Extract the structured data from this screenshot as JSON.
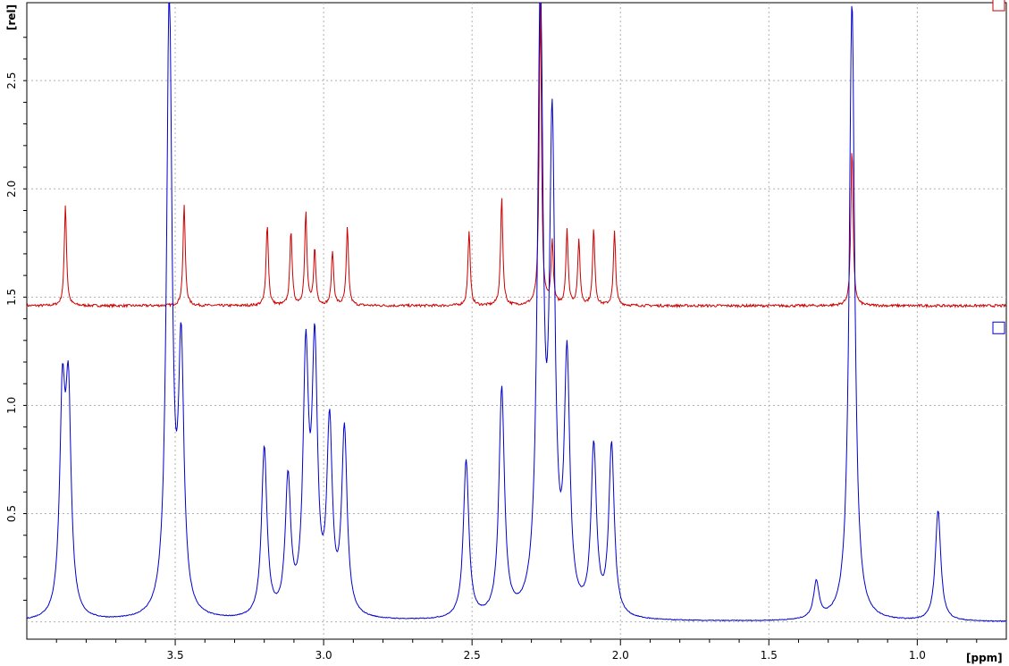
{
  "chart_data": {
    "type": "line",
    "xlabel": "[ppm]",
    "ylabel": "[rel]",
    "x_reversed": true,
    "xlim": [
      4.0,
      0.7
    ],
    "ylim": [
      -0.08,
      2.86
    ],
    "x_ticks": [
      3.5,
      3.0,
      2.5,
      2.0,
      1.5,
      1.0
    ],
    "x_tick_labels": [
      "3.5",
      "3.0",
      "2.5",
      "2.0",
      "1.5",
      "1.0"
    ],
    "y_ticks": [
      0.5,
      1.0,
      1.5,
      2.0,
      2.5
    ],
    "y_tick_labels": [
      "0.5",
      "1.0",
      "1.5",
      "2.0",
      "2.5"
    ],
    "grid": true,
    "series": [
      {
        "color": "#cc0000",
        "baseline": 1.46,
        "peaks": [
          {
            "x": 3.87,
            "y": 1.93
          },
          {
            "x": 3.47,
            "y": 1.93
          },
          {
            "x": 3.19,
            "y": 1.84
          },
          {
            "x": 3.11,
            "y": 1.81
          },
          {
            "x": 3.06,
            "y": 1.89
          },
          {
            "x": 3.03,
            "y": 1.72
          },
          {
            "x": 2.97,
            "y": 1.71
          },
          {
            "x": 2.92,
            "y": 1.82
          },
          {
            "x": 2.51,
            "y": 1.81
          },
          {
            "x": 2.4,
            "y": 1.96
          },
          {
            "x": 2.27,
            "y": 2.86
          },
          {
            "x": 2.23,
            "y": 1.75
          },
          {
            "x": 2.18,
            "y": 1.81
          },
          {
            "x": 2.14,
            "y": 1.76
          },
          {
            "x": 2.09,
            "y": 1.81
          },
          {
            "x": 2.02,
            "y": 1.8
          },
          {
            "x": 1.22,
            "y": 2.19
          }
        ]
      },
      {
        "color": "#0000cc",
        "baseline": 0.0,
        "peaks": [
          {
            "x": 3.88,
            "y": 0.96
          },
          {
            "x": 3.86,
            "y": 0.97
          },
          {
            "x": 3.52,
            "y": 2.86
          },
          {
            "x": 3.48,
            "y": 1.18
          },
          {
            "x": 3.2,
            "y": 0.78
          },
          {
            "x": 3.12,
            "y": 0.62
          },
          {
            "x": 3.06,
            "y": 1.16
          },
          {
            "x": 3.03,
            "y": 1.18
          },
          {
            "x": 2.98,
            "y": 0.86
          },
          {
            "x": 2.93,
            "y": 0.85
          },
          {
            "x": 2.52,
            "y": 0.73
          },
          {
            "x": 2.4,
            "y": 1.05
          },
          {
            "x": 2.27,
            "y": 2.86
          },
          {
            "x": 2.23,
            "y": 2.15
          },
          {
            "x": 2.18,
            "y": 1.14
          },
          {
            "x": 2.09,
            "y": 0.77
          },
          {
            "x": 2.03,
            "y": 0.79
          },
          {
            "x": 1.34,
            "y": 0.17
          },
          {
            "x": 1.22,
            "y": 2.86
          },
          {
            "x": 0.93,
            "y": 0.51
          }
        ]
      }
    ]
  }
}
